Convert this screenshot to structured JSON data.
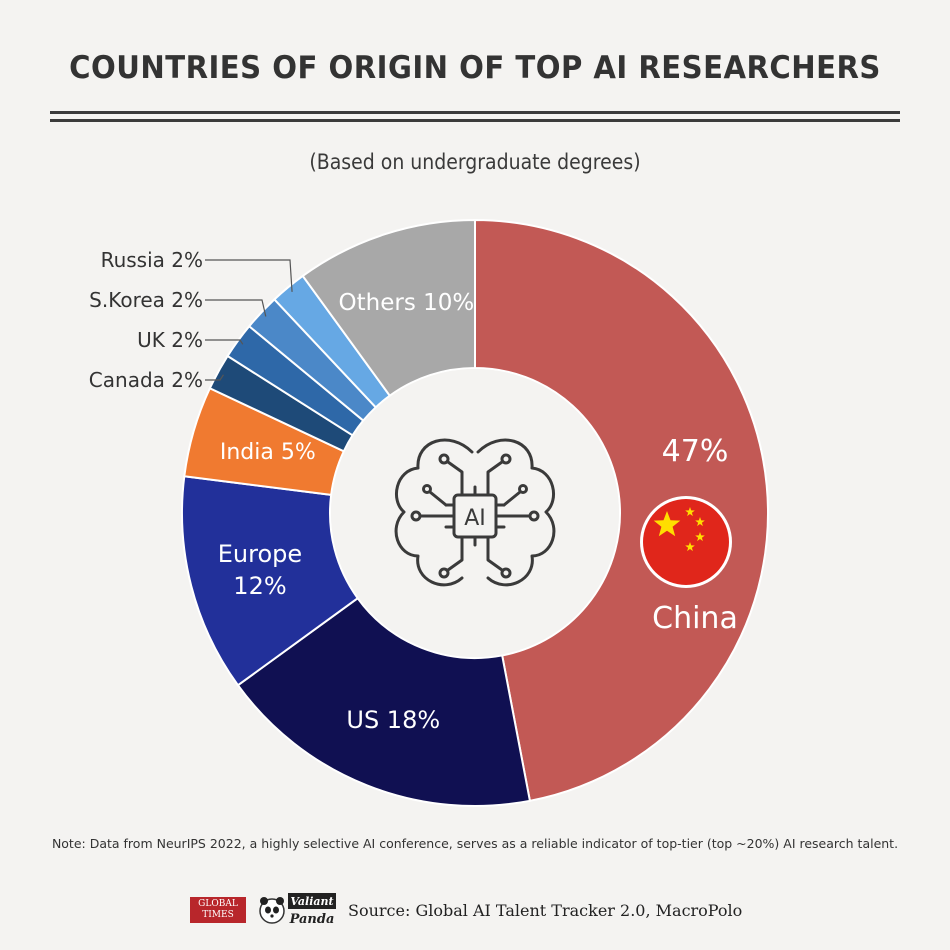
{
  "title": "COUNTRIES OF ORIGIN OF TOP AI RESEARCHERS",
  "subtitle": "(Based on undergraduate degrees)",
  "chart_data": {
    "type": "pie",
    "variant": "donut",
    "unit": "%",
    "title": "COUNTRIES OF ORIGIN OF TOP AI RESEARCHERS",
    "subtitle": "(Based on undergraduate degrees)",
    "slices": [
      {
        "name": "China",
        "value": 47,
        "color": "#c25955",
        "label": "47%",
        "label2": "China"
      },
      {
        "name": "US",
        "value": 18,
        "color": "#101052",
        "label": "US 18%"
      },
      {
        "name": "Europe",
        "value": 12,
        "color": "#22309a",
        "label": "Europe",
        "label2": "12%"
      },
      {
        "name": "India",
        "value": 5,
        "color": "#f07a30",
        "label": "India 5%"
      },
      {
        "name": "Canada",
        "value": 2,
        "color": "#1e4a78",
        "label": "Canada 2%"
      },
      {
        "name": "UK",
        "value": 2,
        "color": "#2e68a8",
        "label": "UK 2%"
      },
      {
        "name": "S.Korea",
        "value": 2,
        "color": "#4b88c8",
        "label": "S.Korea 2%"
      },
      {
        "name": "Russia",
        "value": 2,
        "color": "#66a8e4",
        "label": "Russia 2%"
      },
      {
        "name": "Others",
        "value": 10,
        "color": "#a8a8a8",
        "label": "Others 10%"
      }
    ],
    "center_icon": "ai-brain-chip-icon",
    "center_icon_text": "AI"
  },
  "note": "Note: Data from NeurIPS 2022, a highly selective AI conference, serves as a reliable indicator of top-tier (top ~20%) AI research talent.",
  "footer": {
    "logo_global_times_line1": "GLOBAL",
    "logo_global_times_line2": "TIMES",
    "logo_valiant_panda_line1": "Valiant",
    "logo_valiant_panda_line2": "Panda",
    "source": "Source: Global AI Talent Tracker 2.0, MacroPolo"
  }
}
